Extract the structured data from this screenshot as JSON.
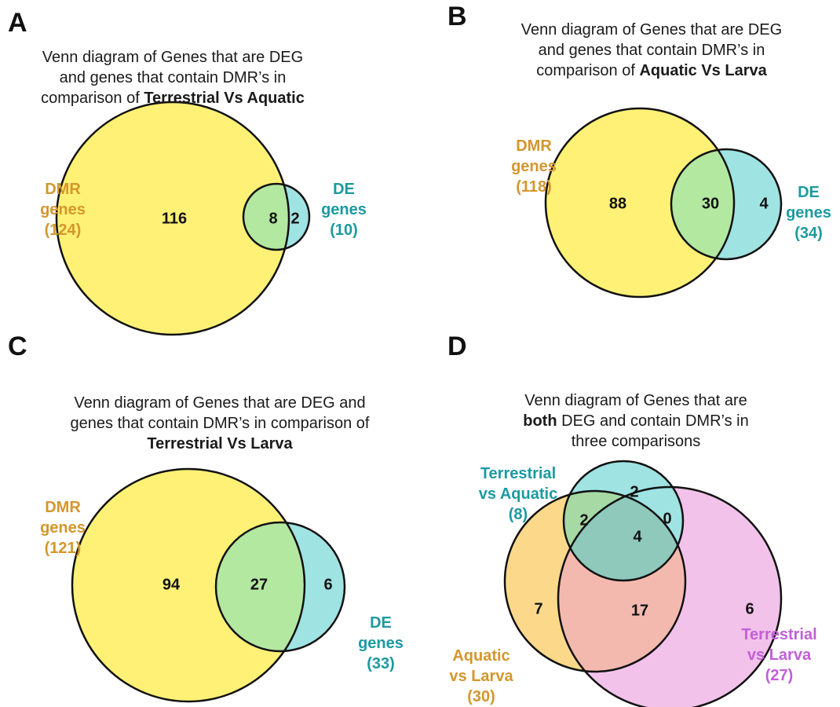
{
  "panels": {
    "A": {
      "letter": "A",
      "title": {
        "line1": "Venn diagram of Genes that are DEG",
        "line2": "and genes that contain DMR’s in",
        "line3_pre": "comparison of ",
        "line3_bold": "Terrestrial Vs Aquatic"
      },
      "dmr_label": {
        "line1": "DMR",
        "line2": "genes",
        "line3": "(124)"
      },
      "de_label": {
        "line1": "DE",
        "line2": "genes",
        "line3": "(10)"
      },
      "counts": {
        "dmr_only": "116",
        "both": "8",
        "de_only": "2"
      }
    },
    "B": {
      "letter": "B",
      "title": {
        "line1": "Venn diagram of Genes that are DEG",
        "line2": "and genes that contain DMR’s in",
        "line3_pre": "comparison of  ",
        "line3_bold": "Aquatic Vs Larva"
      },
      "dmr_label": {
        "line1": "DMR",
        "line2": "genes",
        "line3": "(118)"
      },
      "de_label": {
        "line1": "DE",
        "line2": "genes",
        "line3": "(34)"
      },
      "counts": {
        "dmr_only": "88",
        "both": "30",
        "de_only": "4"
      }
    },
    "C": {
      "letter": "C",
      "title": {
        "line1": "Venn diagram of Genes that are DEG and",
        "line2": "genes that contain DMR’s in comparison of",
        "line3_bold": "Terrestrial Vs Larva"
      },
      "dmr_label": {
        "line1": "DMR",
        "line2": "genes",
        "line3": "(121)"
      },
      "de_label": {
        "line1": "DE",
        "line2": "genes",
        "line3": "(33)"
      },
      "counts": {
        "dmr_only": "94",
        "both": "27",
        "de_only": "6"
      }
    },
    "D": {
      "letter": "D",
      "title": {
        "line1": "Venn diagram of Genes that are",
        "line2_bold": "both",
        "line2_post": " DEG and contain DMR’s in",
        "line3": "three comparisons"
      },
      "set_ta": {
        "line1": "Terrestrial",
        "line2": "vs Aquatic",
        "line3": "(8)"
      },
      "set_al": {
        "line1": "Aquatic",
        "line2": "vs Larva",
        "line3": "(30)"
      },
      "set_tl": {
        "line1": "Terrestrial",
        "line2": "vs Larva",
        "line3": "(27)"
      },
      "counts": {
        "ta_only": "2",
        "ta_al": "2",
        "ta_tl": "0",
        "all_three": "4",
        "al_only": "7",
        "al_tl": "17",
        "tl_only": "6"
      }
    }
  },
  "colors": {
    "yellow": "#fff176",
    "green": "#b3e8a0",
    "cyan": "#9fe3e3",
    "orange": "#fcd98a",
    "pink": "#f2c2ea",
    "salmon": "#f4b9ae",
    "dmr_text": "#d4962c",
    "de_text": "#1c9aa0",
    "tl_text": "#c15fd6"
  }
}
